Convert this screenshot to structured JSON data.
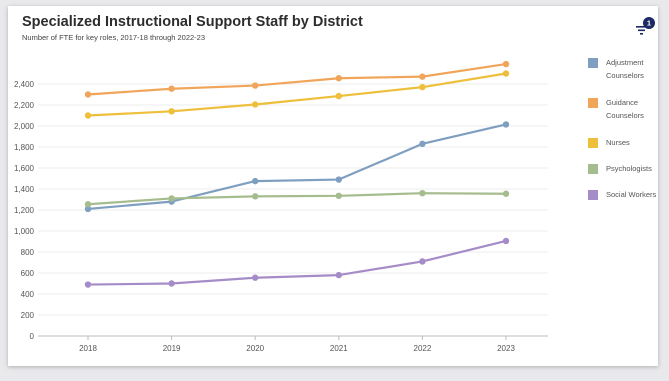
{
  "header": {
    "title": "Specialized Instructional Support Staff by District",
    "subtitle": "Number of FTE for key roles, 2017-18 through 2022-23",
    "filter_badge": "1",
    "filter_icon": "filter-icon"
  },
  "colors": {
    "adjustment": "#7f9fc0",
    "guidance": "#f0a55a",
    "nurses": "#edbf3a",
    "psychologists": "#a5bc8e",
    "social": "#a58cc8",
    "badge": "#1c2a66"
  },
  "chart_data": {
    "type": "line",
    "title": "Specialized Instructional Support Staff by District",
    "subtitle": "Number of FTE for key roles, 2017-18 through 2022-23",
    "x": [
      "2018",
      "2019",
      "2020",
      "2021",
      "2022",
      "2023"
    ],
    "ylim": [
      0,
      2600
    ],
    "yticks": [
      "0",
      "200",
      "400",
      "600",
      "800",
      "1,000",
      "1,200",
      "1,400",
      "1,600",
      "1,800",
      "2,000",
      "2,200",
      "2,400"
    ],
    "ytick_values": [
      0,
      200,
      400,
      600,
      800,
      1000,
      1200,
      1400,
      1600,
      1800,
      2000,
      2200,
      2400
    ],
    "grid": true,
    "legend_position": "right",
    "series": [
      {
        "name": "Adjustment Counselors",
        "name_lines": [
          "Adjustment",
          "Counselors"
        ],
        "color": "#7f9fc0",
        "values": [
          1210,
          1280,
          1475,
          1490,
          1830,
          2015
        ]
      },
      {
        "name": "Guidance Counselors",
        "name_lines": [
          "Guidance",
          "Counselors"
        ],
        "color": "#f0a55a",
        "values": [
          2300,
          2355,
          2385,
          2455,
          2470,
          2590
        ]
      },
      {
        "name": "Nurses",
        "name_lines": [
          "Nurses"
        ],
        "color": "#edbf3a",
        "values": [
          2100,
          2140,
          2205,
          2285,
          2370,
          2500
        ]
      },
      {
        "name": "Psychologists",
        "name_lines": [
          "Psychologists"
        ],
        "color": "#a5bc8e",
        "values": [
          1255,
          1310,
          1330,
          1335,
          1360,
          1355
        ]
      },
      {
        "name": "Social Workers",
        "name_lines": [
          "Social Workers"
        ],
        "color": "#a58cc8",
        "values": [
          490,
          500,
          555,
          580,
          710,
          905
        ]
      }
    ]
  }
}
